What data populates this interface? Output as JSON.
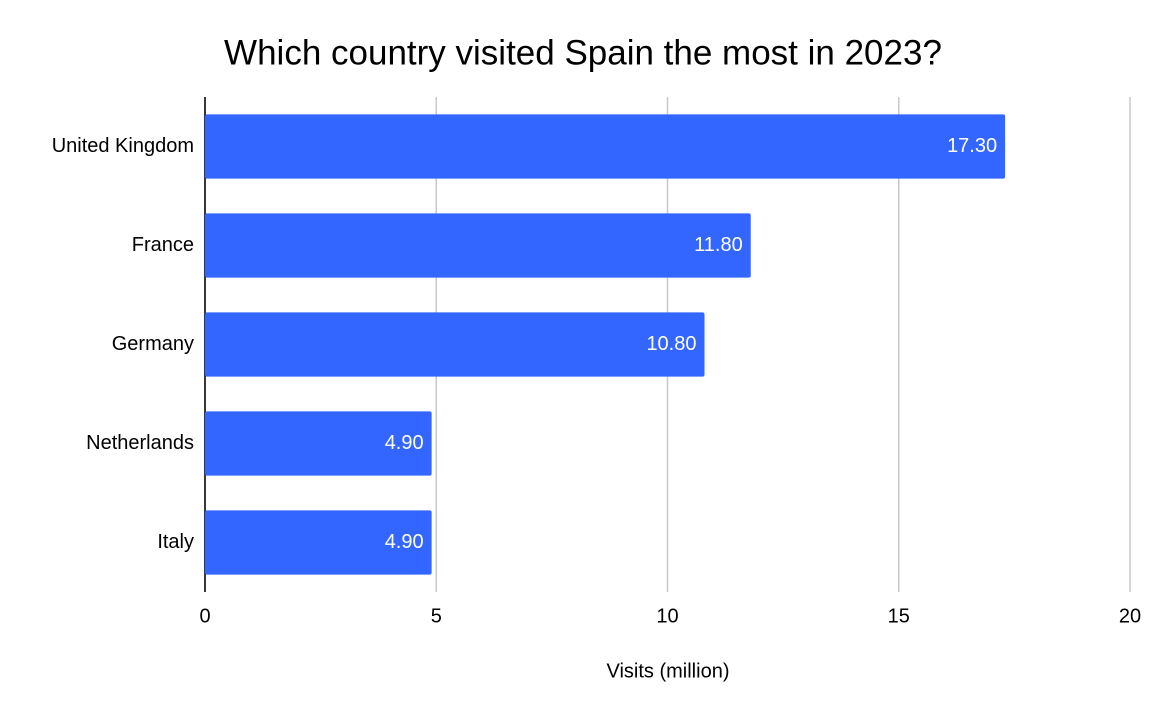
{
  "chart_data": {
    "type": "bar",
    "orientation": "horizontal",
    "title": "Which country visited Spain the most in 2023?",
    "x_label": "Visits (million)",
    "categories": [
      "United Kingdom",
      "France",
      "Germany",
      "Netherlands",
      "Italy"
    ],
    "values": [
      17.3,
      11.8,
      10.8,
      4.9,
      4.9
    ],
    "value_labels": [
      "17.30",
      "11.80",
      "10.80",
      "4.90",
      "4.90"
    ],
    "color": "#3366ff",
    "xlim": [
      0,
      20
    ],
    "xticks": [
      0,
      5,
      10,
      15,
      20
    ],
    "grid": true
  }
}
